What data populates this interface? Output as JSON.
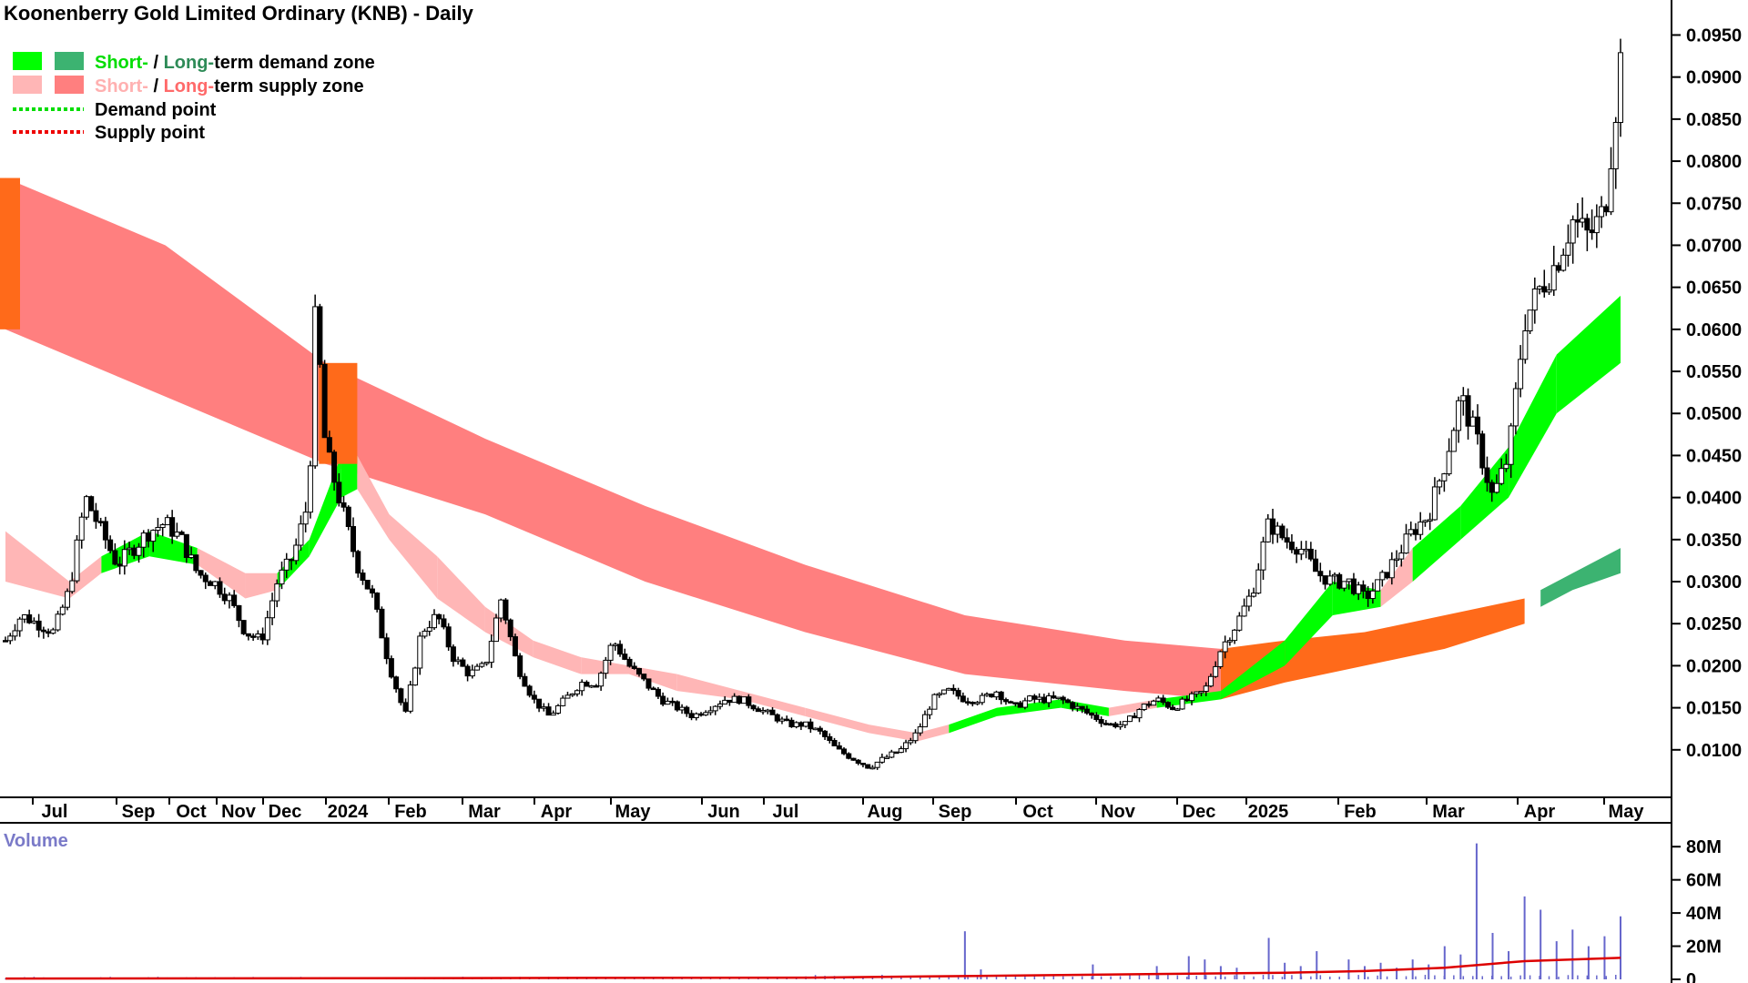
{
  "header": {
    "title": "Koonenberry Gold Limited Ordinary (KNB) - Daily"
  },
  "legend": {
    "row1": {
      "short": "Short-",
      "sep": " / ",
      "long": "Long-",
      "rest": "term demand zone"
    },
    "row2": {
      "short": "Short-",
      "sep": " / ",
      "long": "Long-",
      "rest": "term supply zone"
    },
    "row3": "Demand point",
    "row4": "Supply point"
  },
  "volume_panel": {
    "label": "Volume"
  },
  "colors": {
    "short_demand": "#00ff00",
    "long_demand": "#3cb371",
    "short_supply": "#ffb6b6",
    "long_supply": "#ff7f7f",
    "overlap_zone": "#ff6a1a",
    "demand_point": "#00dd00",
    "supply_point": "#ee0000",
    "volume_bar": "#6666cc",
    "volume_ma": "#dd0000",
    "legend_short_demand_text": "#00dd00",
    "legend_long_demand_text": "#2e8b57",
    "legend_short_supply_text": "#ffb0b0",
    "legend_long_supply_text": "#ff6a6a"
  },
  "chart_data": [
    {
      "type": "candlestick",
      "title": "Koonenberry Gold Limited Ordinary (KNB) - Daily",
      "x_tick_labels": [
        "Jul",
        "Sep",
        "Oct",
        "Nov",
        "Dec",
        "2024",
        "Feb",
        "Mar",
        "Apr",
        "May",
        "Jun",
        "Jul",
        "Aug",
        "Sep",
        "Oct",
        "Nov",
        "Dec",
        "2025",
        "Feb",
        "Mar",
        "Apr",
        "May"
      ],
      "y_tick_labels": [
        "0.0950",
        "0.0900",
        "0.0850",
        "0.0800",
        "0.0750",
        "0.0700",
        "0.0650",
        "0.0600",
        "0.0550",
        "0.0500",
        "0.0450",
        "0.0400",
        "0.0350",
        "0.0300",
        "0.0250",
        "0.0200",
        "0.0150",
        "0.0100"
      ],
      "ylim": [
        0.005,
        0.097
      ],
      "price_path": [
        {
          "t": 0,
          "p": 0.023
        },
        {
          "t": 1,
          "p": 0.026
        },
        {
          "t": 3,
          "p": 0.024
        },
        {
          "t": 4,
          "p": 0.029
        },
        {
          "t": 5,
          "p": 0.04
        },
        {
          "t": 6,
          "p": 0.036
        },
        {
          "t": 7,
          "p": 0.032
        },
        {
          "t": 9,
          "p": 0.036
        },
        {
          "t": 10,
          "p": 0.037
        },
        {
          "t": 11,
          "p": 0.035
        },
        {
          "t": 12,
          "p": 0.031
        },
        {
          "t": 13,
          "p": 0.03
        },
        {
          "t": 14,
          "p": 0.028
        },
        {
          "t": 15,
          "p": 0.024
        },
        {
          "t": 16,
          "p": 0.023
        },
        {
          "t": 17,
          "p": 0.03
        },
        {
          "t": 18,
          "p": 0.033
        },
        {
          "t": 19,
          "p": 0.04
        },
        {
          "t": 19.3,
          "p": 0.062
        },
        {
          "t": 19.6,
          "p": 0.057
        },
        {
          "t": 20,
          "p": 0.046
        },
        {
          "t": 21,
          "p": 0.039
        },
        {
          "t": 22,
          "p": 0.032
        },
        {
          "t": 23,
          "p": 0.028
        },
        {
          "t": 24,
          "p": 0.02
        },
        {
          "t": 25,
          "p": 0.014
        },
        {
          "t": 26,
          "p": 0.024
        },
        {
          "t": 27,
          "p": 0.026
        },
        {
          "t": 28,
          "p": 0.021
        },
        {
          "t": 29,
          "p": 0.019
        },
        {
          "t": 30,
          "p": 0.02
        },
        {
          "t": 31,
          "p": 0.028
        },
        {
          "t": 32,
          "p": 0.02
        },
        {
          "t": 33,
          "p": 0.016
        },
        {
          "t": 34,
          "p": 0.014
        },
        {
          "t": 35,
          "p": 0.016
        },
        {
          "t": 36,
          "p": 0.018
        },
        {
          "t": 37,
          "p": 0.018
        },
        {
          "t": 38,
          "p": 0.023
        },
        {
          "t": 39,
          "p": 0.02
        },
        {
          "t": 40,
          "p": 0.018
        },
        {
          "t": 41,
          "p": 0.016
        },
        {
          "t": 42,
          "p": 0.015
        },
        {
          "t": 43,
          "p": 0.014
        },
        {
          "t": 44,
          "p": 0.015
        },
        {
          "t": 45,
          "p": 0.016
        },
        {
          "t": 46,
          "p": 0.016
        },
        {
          "t": 47,
          "p": 0.015
        },
        {
          "t": 48,
          "p": 0.014
        },
        {
          "t": 49,
          "p": 0.013
        },
        {
          "t": 50,
          "p": 0.013
        },
        {
          "t": 51,
          "p": 0.012
        },
        {
          "t": 52,
          "p": 0.01
        },
        {
          "t": 53,
          "p": 0.009
        },
        {
          "t": 54,
          "p": 0.008
        },
        {
          "t": 55,
          "p": 0.009
        },
        {
          "t": 56,
          "p": 0.01
        },
        {
          "t": 57,
          "p": 0.012
        },
        {
          "t": 58,
          "p": 0.016
        },
        {
          "t": 59,
          "p": 0.017
        },
        {
          "t": 60,
          "p": 0.016
        },
        {
          "t": 61,
          "p": 0.016
        },
        {
          "t": 62,
          "p": 0.017
        },
        {
          "t": 63,
          "p": 0.015
        },
        {
          "t": 64,
          "p": 0.016
        },
        {
          "t": 65,
          "p": 0.016
        },
        {
          "t": 66,
          "p": 0.016
        },
        {
          "t": 67,
          "p": 0.015
        },
        {
          "t": 68,
          "p": 0.014
        },
        {
          "t": 69,
          "p": 0.013
        },
        {
          "t": 70,
          "p": 0.013
        },
        {
          "t": 71,
          "p": 0.015
        },
        {
          "t": 72,
          "p": 0.016
        },
        {
          "t": 73,
          "p": 0.015
        },
        {
          "t": 74,
          "p": 0.016
        },
        {
          "t": 75,
          "p": 0.017
        },
        {
          "t": 76,
          "p": 0.022
        },
        {
          "t": 77,
          "p": 0.025
        },
        {
          "t": 78,
          "p": 0.029
        },
        {
          "t": 79,
          "p": 0.037
        },
        {
          "t": 80,
          "p": 0.035
        },
        {
          "t": 81,
          "p": 0.034
        },
        {
          "t": 82,
          "p": 0.031
        },
        {
          "t": 83,
          "p": 0.03
        },
        {
          "t": 84,
          "p": 0.03
        },
        {
          "t": 85,
          "p": 0.028
        },
        {
          "t": 86,
          "p": 0.03
        },
        {
          "t": 87,
          "p": 0.033
        },
        {
          "t": 88,
          "p": 0.036
        },
        {
          "t": 89,
          "p": 0.038
        },
        {
          "t": 90,
          "p": 0.044
        },
        {
          "t": 91,
          "p": 0.052
        },
        {
          "t": 92,
          "p": 0.047
        },
        {
          "t": 93,
          "p": 0.04
        },
        {
          "t": 94,
          "p": 0.045
        },
        {
          "t": 95,
          "p": 0.061
        },
        {
          "t": 96,
          "p": 0.065
        },
        {
          "t": 97,
          "p": 0.068
        },
        {
          "t": 98,
          "p": 0.073
        },
        {
          "t": 99,
          "p": 0.071
        },
        {
          "t": 100,
          "p": 0.074
        },
        {
          "t": 101,
          "p": 0.092
        }
      ],
      "long_supply_zone": [
        {
          "t": 0,
          "lo": 0.06,
          "hi": 0.078
        },
        {
          "t": 10,
          "lo": 0.052,
          "hi": 0.07
        },
        {
          "t": 20,
          "lo": 0.044,
          "hi": 0.056
        },
        {
          "t": 30,
          "lo": 0.038,
          "hi": 0.047
        },
        {
          "t": 40,
          "lo": 0.03,
          "hi": 0.039
        },
        {
          "t": 50,
          "lo": 0.024,
          "hi": 0.032
        },
        {
          "t": 60,
          "lo": 0.019,
          "hi": 0.026
        },
        {
          "t": 70,
          "lo": 0.017,
          "hi": 0.023
        },
        {
          "t": 76,
          "lo": 0.016,
          "hi": 0.022
        }
      ],
      "long_demand_zone_overlap": [
        {
          "t": 76,
          "lo": 0.016,
          "hi": 0.022
        },
        {
          "t": 80,
          "lo": 0.018,
          "hi": 0.023
        },
        {
          "t": 85,
          "lo": 0.02,
          "hi": 0.024
        },
        {
          "t": 90,
          "lo": 0.022,
          "hi": 0.026
        },
        {
          "t": 95,
          "lo": 0.025,
          "hi": 0.028
        }
      ],
      "long_demand_zone": [
        {
          "t": 96,
          "lo": 0.027,
          "hi": 0.029
        },
        {
          "t": 98,
          "lo": 0.029,
          "hi": 0.031
        },
        {
          "t": 101,
          "lo": 0.031,
          "hi": 0.034
        }
      ],
      "short_zone": [
        {
          "t": 0,
          "lo": 0.03,
          "hi": 0.036,
          "kind": "supply"
        },
        {
          "t": 4,
          "lo": 0.028,
          "hi": 0.03,
          "kind": "supply"
        },
        {
          "t": 6,
          "lo": 0.031,
          "hi": 0.033,
          "kind": "demand"
        },
        {
          "t": 9,
          "lo": 0.033,
          "hi": 0.036,
          "kind": "demand"
        },
        {
          "t": 12,
          "lo": 0.032,
          "hi": 0.034,
          "kind": "supply"
        },
        {
          "t": 15,
          "lo": 0.028,
          "hi": 0.031,
          "kind": "supply"
        },
        {
          "t": 17,
          "lo": 0.029,
          "hi": 0.031,
          "kind": "demand"
        },
        {
          "t": 19,
          "lo": 0.033,
          "hi": 0.035,
          "kind": "demand"
        },
        {
          "t": 21,
          "lo": 0.04,
          "hi": 0.045,
          "kind": "demand"
        },
        {
          "t": 22,
          "lo": 0.041,
          "hi": 0.045,
          "kind": "supply"
        },
        {
          "t": 24,
          "lo": 0.035,
          "hi": 0.038,
          "kind": "supply"
        },
        {
          "t": 27,
          "lo": 0.028,
          "hi": 0.033,
          "kind": "supply"
        },
        {
          "t": 30,
          "lo": 0.024,
          "hi": 0.027,
          "kind": "supply"
        },
        {
          "t": 33,
          "lo": 0.021,
          "hi": 0.023,
          "kind": "supply"
        },
        {
          "t": 36,
          "lo": 0.019,
          "hi": 0.021,
          "kind": "supply"
        },
        {
          "t": 39,
          "lo": 0.019,
          "hi": 0.02,
          "kind": "supply"
        },
        {
          "t": 42,
          "lo": 0.017,
          "hi": 0.019,
          "kind": "supply"
        },
        {
          "t": 46,
          "lo": 0.016,
          "hi": 0.017,
          "kind": "supply"
        },
        {
          "t": 50,
          "lo": 0.014,
          "hi": 0.015,
          "kind": "supply"
        },
        {
          "t": 54,
          "lo": 0.012,
          "hi": 0.013,
          "kind": "supply"
        },
        {
          "t": 57,
          "lo": 0.011,
          "hi": 0.012,
          "kind": "supply"
        },
        {
          "t": 59,
          "lo": 0.012,
          "hi": 0.013,
          "kind": "demand"
        },
        {
          "t": 62,
          "lo": 0.014,
          "hi": 0.015,
          "kind": "demand"
        },
        {
          "t": 66,
          "lo": 0.015,
          "hi": 0.016,
          "kind": "demand"
        },
        {
          "t": 69,
          "lo": 0.014,
          "hi": 0.015,
          "kind": "supply"
        },
        {
          "t": 72,
          "lo": 0.015,
          "hi": 0.016,
          "kind": "demand"
        },
        {
          "t": 76,
          "lo": 0.016,
          "hi": 0.017,
          "kind": "demand"
        },
        {
          "t": 80,
          "lo": 0.02,
          "hi": 0.023,
          "kind": "demand"
        },
        {
          "t": 83,
          "lo": 0.026,
          "hi": 0.03,
          "kind": "demand"
        },
        {
          "t": 86,
          "lo": 0.027,
          "hi": 0.029,
          "kind": "supply"
        },
        {
          "t": 88,
          "lo": 0.03,
          "hi": 0.034,
          "kind": "demand"
        },
        {
          "t": 91,
          "lo": 0.035,
          "hi": 0.039,
          "kind": "demand"
        },
        {
          "t": 94,
          "lo": 0.04,
          "hi": 0.046,
          "kind": "demand"
        },
        {
          "t": 97,
          "lo": 0.05,
          "hi": 0.057,
          "kind": "demand"
        },
        {
          "t": 101,
          "lo": 0.056,
          "hi": 0.064,
          "kind": "demand"
        }
      ]
    },
    {
      "type": "bar",
      "title": "Volume",
      "y_tick_labels": [
        "80M",
        "60M",
        "40M",
        "20M",
        "0"
      ],
      "ylim": [
        0,
        90
      ],
      "unit": "M",
      "volume": [
        {
          "t": 60,
          "v": 29
        },
        {
          "t": 61,
          "v": 6
        },
        {
          "t": 68,
          "v": 9
        },
        {
          "t": 72,
          "v": 8
        },
        {
          "t": 74,
          "v": 14
        },
        {
          "t": 75,
          "v": 12
        },
        {
          "t": 76,
          "v": 8
        },
        {
          "t": 77,
          "v": 7
        },
        {
          "t": 79,
          "v": 25
        },
        {
          "t": 80,
          "v": 10
        },
        {
          "t": 81,
          "v": 8
        },
        {
          "t": 82,
          "v": 17
        },
        {
          "t": 84,
          "v": 12
        },
        {
          "t": 85,
          "v": 8
        },
        {
          "t": 86,
          "v": 10
        },
        {
          "t": 87,
          "v": 7
        },
        {
          "t": 88,
          "v": 12
        },
        {
          "t": 89,
          "v": 9
        },
        {
          "t": 90,
          "v": 20
        },
        {
          "t": 91,
          "v": 15
        },
        {
          "t": 92,
          "v": 82
        },
        {
          "t": 93,
          "v": 28
        },
        {
          "t": 94,
          "v": 17
        },
        {
          "t": 95,
          "v": 50
        },
        {
          "t": 96,
          "v": 42
        },
        {
          "t": 97,
          "v": 23
        },
        {
          "t": 98,
          "v": 30
        },
        {
          "t": 99,
          "v": 20
        },
        {
          "t": 100,
          "v": 26
        },
        {
          "t": 101,
          "v": 38
        }
      ],
      "ma": [
        {
          "t": 0,
          "v": 0.5
        },
        {
          "t": 50,
          "v": 1
        },
        {
          "t": 60,
          "v": 2
        },
        {
          "t": 70,
          "v": 3
        },
        {
          "t": 80,
          "v": 4
        },
        {
          "t": 85,
          "v": 5
        },
        {
          "t": 90,
          "v": 7
        },
        {
          "t": 95,
          "v": 11
        },
        {
          "t": 101,
          "v": 13
        }
      ]
    }
  ]
}
